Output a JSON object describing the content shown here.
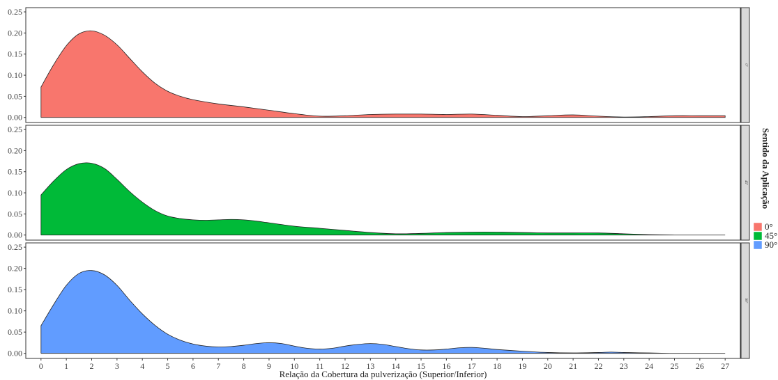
{
  "chart_data": {
    "type": "area",
    "xlabel": "Relação da Cobertura da pulverização (Superior/Inferior)",
    "ylabel": "",
    "xlim": [
      -0.6,
      27.6
    ],
    "ylim": [
      -0.012,
      0.26
    ],
    "x_ticks": [
      0,
      1,
      2,
      3,
      4,
      5,
      6,
      7,
      8,
      9,
      10,
      11,
      12,
      13,
      14,
      15,
      16,
      17,
      18,
      19,
      20,
      21,
      22,
      23,
      24,
      25,
      26,
      27
    ],
    "y_ticks": [
      0.0,
      0.05,
      0.1,
      0.15,
      0.2,
      0.25
    ],
    "y_tick_labels": [
      "0.00",
      "0.05",
      "0.10",
      "0.15",
      "0.20",
      "0.25"
    ],
    "grid": false,
    "legend": {
      "title": "Sentido da Aplicação",
      "position": "right",
      "entries": [
        "0°",
        "45°",
        "90°"
      ]
    },
    "series": [
      {
        "name": "0°",
        "facet_label": "0°",
        "color": "#F8766D",
        "x": [
          0,
          0.5,
          1,
          1.5,
          2,
          2.5,
          3,
          3.5,
          4,
          4.5,
          5,
          5.5,
          6,
          7,
          8,
          9,
          10,
          11,
          12,
          13,
          14,
          15,
          16,
          17,
          18,
          19,
          20,
          21,
          22,
          23,
          24,
          25,
          26,
          27
        ],
        "y": [
          0.072,
          0.125,
          0.17,
          0.198,
          0.205,
          0.195,
          0.172,
          0.14,
          0.108,
          0.081,
          0.062,
          0.05,
          0.042,
          0.032,
          0.025,
          0.017,
          0.009,
          0.003,
          0.004,
          0.007,
          0.008,
          0.008,
          0.007,
          0.008,
          0.005,
          0.002,
          0.004,
          0.006,
          0.003,
          0.001,
          0.002,
          0.004,
          0.004,
          0.004
        ]
      },
      {
        "name": "45°",
        "facet_label": "45°",
        "color": "#00BA38",
        "x": [
          0,
          0.5,
          1,
          1.5,
          2,
          2.5,
          3,
          3.5,
          4,
          4.5,
          5,
          5.5,
          6,
          6.5,
          7,
          7.5,
          8,
          8.5,
          9,
          10,
          11,
          12,
          13,
          14,
          15,
          16,
          17,
          18,
          19,
          20,
          21,
          22,
          23,
          24,
          25,
          26,
          27
        ],
        "y": [
          0.095,
          0.128,
          0.155,
          0.169,
          0.17,
          0.158,
          0.132,
          0.103,
          0.078,
          0.058,
          0.045,
          0.039,
          0.036,
          0.035,
          0.036,
          0.037,
          0.036,
          0.033,
          0.029,
          0.021,
          0.016,
          0.011,
          0.006,
          0.003,
          0.004,
          0.006,
          0.007,
          0.007,
          0.006,
          0.005,
          0.005,
          0.005,
          0.003,
          0.001,
          0.0,
          0.0,
          0.0
        ]
      },
      {
        "name": "90°",
        "facet_label": "90°",
        "color": "#619CFF",
        "x": [
          0,
          0.5,
          1,
          1.5,
          2,
          2.5,
          3,
          3.5,
          4,
          4.5,
          5,
          5.5,
          6,
          6.5,
          7,
          7.5,
          8,
          8.5,
          9,
          9.5,
          10,
          10.5,
          11,
          11.5,
          12,
          12.5,
          13,
          13.5,
          14,
          14.5,
          15,
          15.5,
          16,
          16.5,
          17,
          17.5,
          18,
          19,
          20,
          21,
          22,
          22.5,
          23,
          24,
          25,
          26,
          27
        ],
        "y": [
          0.065,
          0.115,
          0.16,
          0.188,
          0.195,
          0.185,
          0.16,
          0.125,
          0.093,
          0.066,
          0.045,
          0.031,
          0.022,
          0.017,
          0.015,
          0.016,
          0.019,
          0.023,
          0.025,
          0.023,
          0.017,
          0.012,
          0.01,
          0.012,
          0.017,
          0.021,
          0.023,
          0.021,
          0.016,
          0.011,
          0.008,
          0.008,
          0.01,
          0.013,
          0.014,
          0.012,
          0.009,
          0.005,
          0.002,
          0.001,
          0.002,
          0.003,
          0.002,
          0.001,
          0.0,
          0.0,
          0.0
        ]
      }
    ]
  }
}
